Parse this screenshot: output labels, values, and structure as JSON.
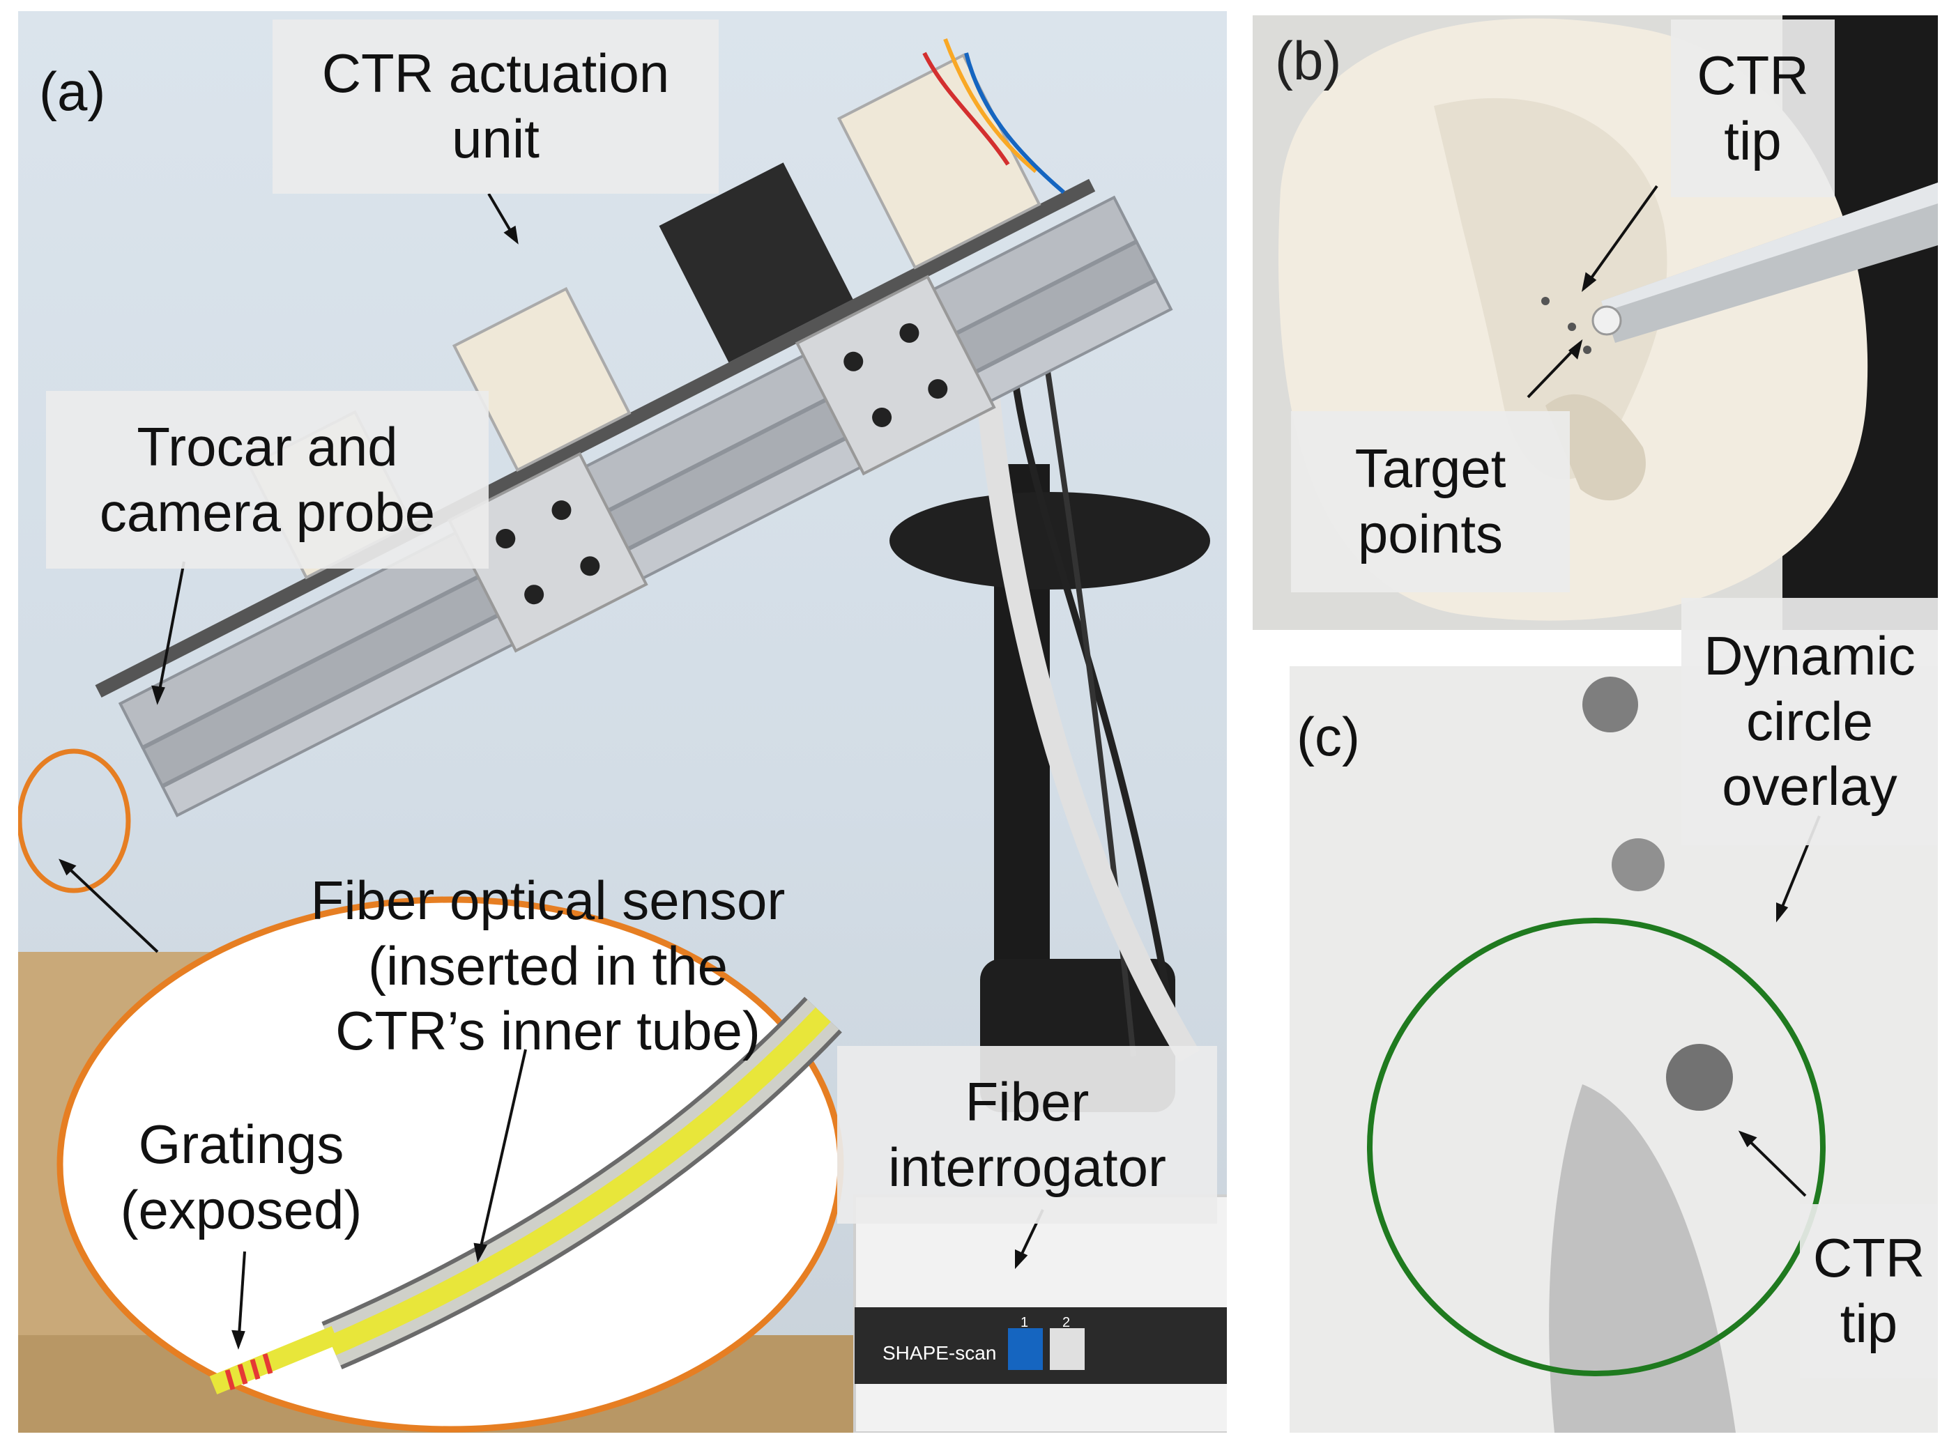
{
  "panels": {
    "a": {
      "letter": "(a)",
      "labels": {
        "actuation": "CTR actuation\nunit",
        "trocar": "Trocar and\ncamera probe",
        "fiber_sensor": "Fiber optical sensor\n(inserted in the\nCTR’s inner tube)",
        "gratings": "Gratings\n(exposed)",
        "interrogator": "Fiber\ninterrogator",
        "device_brand": "SHAPE-scan",
        "port_1": "1",
        "port_2": "2"
      }
    },
    "b": {
      "letter": "(b)",
      "labels": {
        "ctr_tip": "CTR\ntip",
        "target_points": "Target\npoints"
      }
    },
    "c": {
      "letter": "(c)",
      "labels": {
        "overlay": "Dynamic\ncircle\noverlay",
        "ctr_tip": "CTR\ntip"
      }
    }
  },
  "colors": {
    "callout_ellipse": "#e67e22",
    "overlay_circle": "#1f7a1f",
    "fiber_yellow": "#e8e63a",
    "grating_red": "#e53935"
  }
}
